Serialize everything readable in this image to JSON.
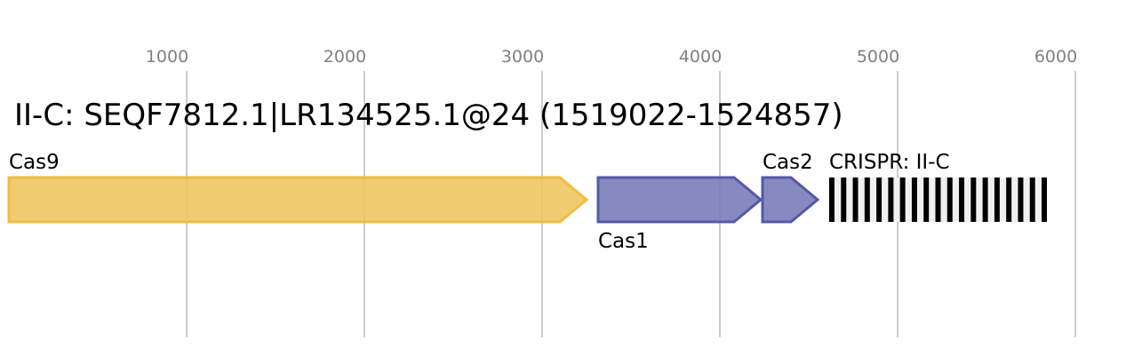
{
  "chart_data": {
    "type": "gene-map",
    "title": "II-C: SEQF7812.1|LR134525.1@24 (1519022-1524857)",
    "x_ticks": [
      1000,
      2000,
      3000,
      4000,
      5000,
      6000
    ],
    "xlim": [
      0,
      6300
    ],
    "grid": true,
    "features": [
      {
        "name": "Cas9",
        "start": 0,
        "end": 3250,
        "strand": "+",
        "color": "#f0c660",
        "stroke": "#f0bc47",
        "label_pos": "above"
      },
      {
        "name": "Cas1",
        "start": 3315,
        "end": 4230,
        "strand": "+",
        "color": "#7a7db7",
        "stroke": "#5558a8",
        "label_pos": "below"
      },
      {
        "name": "Cas2",
        "start": 4240,
        "end": 4550,
        "strand": "+",
        "color": "#7a7db7",
        "stroke": "#5558a8",
        "label_pos": "above"
      }
    ],
    "crispr": {
      "label": "CRISPR: II-C",
      "start": 4615,
      "end": 5840,
      "repeats": 19
    }
  }
}
